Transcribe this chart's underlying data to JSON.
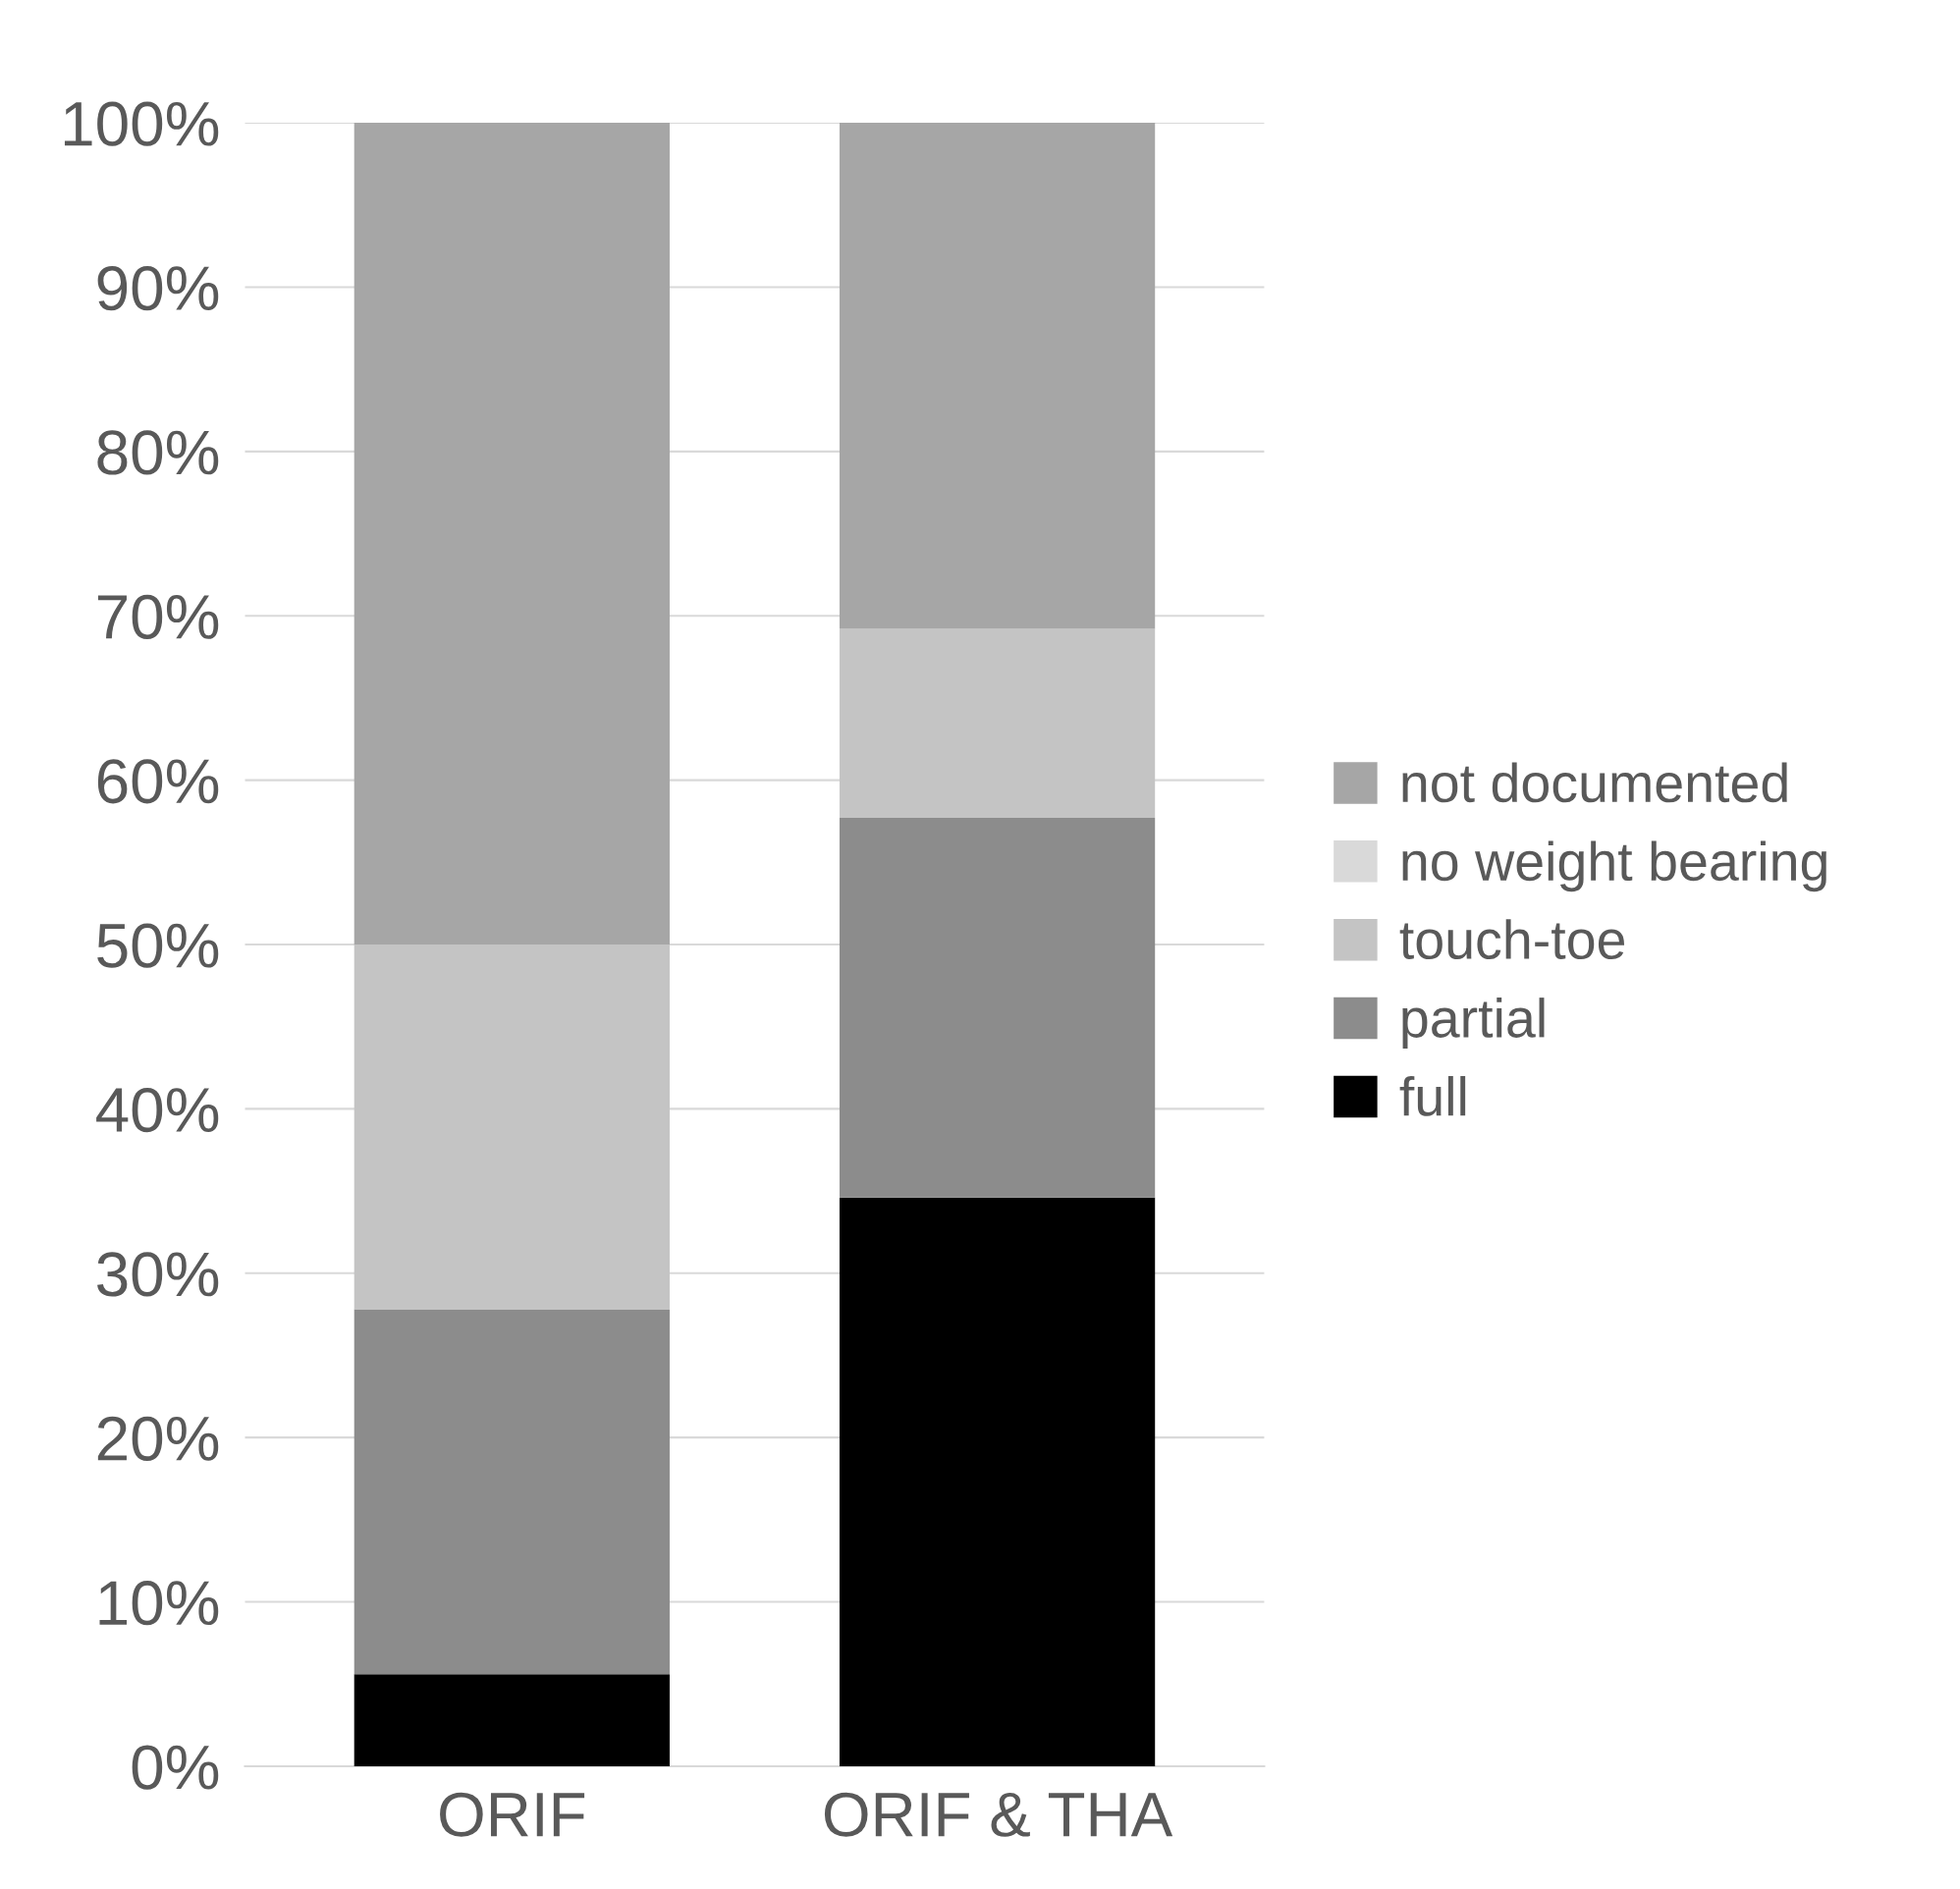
{
  "chart_data": {
    "type": "bar",
    "stacked": true,
    "categories": [
      "ORIF",
      "ORIF & THA"
    ],
    "series": [
      {
        "name": "full",
        "color": "#000000",
        "values": [
          5.6,
          34.6
        ]
      },
      {
        "name": "partial",
        "color": "#8c8c8c",
        "values": [
          22.2,
          23.1
        ]
      },
      {
        "name": "touch-toe",
        "color": "#c4c4c4",
        "values": [
          22.2,
          11.5
        ]
      },
      {
        "name": "no weight bearing",
        "color": "#d9d9d9",
        "values": [
          0,
          0
        ]
      },
      {
        "name": "not documented",
        "color": "#a6a6a6",
        "values": [
          50.0,
          30.8
        ]
      }
    ],
    "ylim": [
      0,
      100
    ],
    "yticks": [
      {
        "value": 0,
        "label": "0%"
      },
      {
        "value": 10,
        "label": "10%"
      },
      {
        "value": 20,
        "label": "20%"
      },
      {
        "value": 30,
        "label": "30%"
      },
      {
        "value": 40,
        "label": "40%"
      },
      {
        "value": 50,
        "label": "50%"
      },
      {
        "value": 60,
        "label": "60%"
      },
      {
        "value": 70,
        "label": "70%"
      },
      {
        "value": 80,
        "label": "80%"
      },
      {
        "value": 90,
        "label": "90%"
      },
      {
        "value": 100,
        "label": "100%"
      }
    ],
    "grid": "y",
    "legend": "right"
  }
}
